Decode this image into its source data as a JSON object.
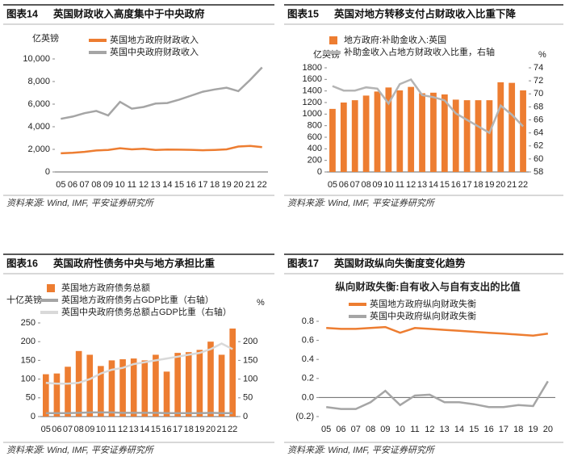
{
  "chart_data": [
    {
      "type": "line",
      "figure_label": "图表14",
      "title": "英国财政收入高度集中于中央政府",
      "y_unit": "亿英镑",
      "categories": [
        "05",
        "06",
        "07",
        "08",
        "09",
        "10",
        "11",
        "12",
        "13",
        "14",
        "15",
        "16",
        "17",
        "18",
        "19",
        "20",
        "21",
        "22"
      ],
      "series": [
        {
          "name": "英国地方政府财政收入",
          "type": "line",
          "color": "#ed7d31",
          "values": [
            1650,
            1700,
            1780,
            1900,
            1950,
            2100,
            2000,
            2050,
            1950,
            1980,
            1970,
            1960,
            1920,
            1950,
            2000,
            2250,
            2300,
            2200
          ]
        },
        {
          "name": "英国中央政府财政收入",
          "type": "line",
          "color": "#a5a5a5",
          "values": [
            4700,
            4900,
            5200,
            5400,
            5000,
            6200,
            5600,
            5750,
            6050,
            6100,
            6400,
            6750,
            7100,
            7300,
            7450,
            7150,
            8150,
            9250
          ]
        }
      ],
      "ylim": [
        0,
        10000
      ],
      "yticks": [
        0,
        {
          "value": 2000,
          "label": "2,000"
        },
        {
          "value": 4000,
          "label": "4,000"
        },
        {
          "value": 6000,
          "label": "6,000"
        },
        {
          "value": 8000,
          "label": "8,000"
        },
        {
          "value": 10000,
          "label": "10,000"
        }
      ],
      "legend": "upper left",
      "source": "资料来源: Wind, IMF, 平安证券研究所"
    },
    {
      "type": "bar_line",
      "figure_label": "图表15",
      "title": "英国对地方转移支付占财政收入比重下降",
      "y_unit": "亿英镑",
      "y2_unit": "%",
      "categories": [
        "05",
        "06",
        "07",
        "08",
        "09",
        "10",
        "11",
        "12",
        "13",
        "14",
        "15",
        "16",
        "17",
        "18",
        "19",
        "20",
        "21",
        "22"
      ],
      "series": [
        {
          "name": "地方政府:补助金收入:英国",
          "type": "bar",
          "color": "#ed7d31",
          "values": [
            1090,
            1200,
            1240,
            1320,
            1390,
            1460,
            1410,
            1470,
            1360,
            1370,
            1340,
            1250,
            1240,
            1240,
            1240,
            1550,
            1540,
            1410
          ]
        },
        {
          "name": "补助金收入占地方财政收入比重，右轴",
          "type": "line",
          "axis": "y2",
          "color": "#b4b4b4",
          "values": [
            71.2,
            70.5,
            70.5,
            71,
            70.8,
            68.5,
            71.5,
            72.2,
            69.8,
            69.5,
            69,
            67,
            66,
            65,
            64,
            68.2,
            66.8,
            65
          ]
        }
      ],
      "ylim": [
        0,
        1800
      ],
      "yticks": [
        0,
        200,
        400,
        600,
        800,
        1000,
        1200,
        1400,
        1600,
        1800
      ],
      "y2lim": [
        58,
        74
      ],
      "y2ticks": [
        58,
        60,
        62,
        64,
        66,
        68,
        70,
        72,
        74
      ],
      "legend": "top",
      "source": "资料来源: Wind, IMF, 平安证券研究所"
    },
    {
      "type": "bar_line",
      "figure_label": "图表16",
      "title": "英国政府性债务中央与地方承担比重",
      "y_unit": "十亿英镑",
      "y2_unit": "%",
      "categories": [
        "05",
        "06",
        "07",
        "08",
        "09",
        "10",
        "11",
        "12",
        "13",
        "14",
        "15",
        "16",
        "17",
        "18",
        "19",
        "20",
        "21",
        "22"
      ],
      "series": [
        {
          "name": "英国地方政府债务总额",
          "type": "bar",
          "color": "#ed7d31",
          "values": [
            113,
            115,
            133,
            175,
            165,
            135,
            150,
            153,
            155,
            150,
            165,
            120,
            170,
            172,
            178,
            200,
            165,
            235
          ]
        },
        {
          "name": "英国地方政府债务占GDP比重（右轴）",
          "type": "line",
          "axis": "y2",
          "color": "#a5a5a5",
          "values": [
            9,
            9,
            9,
            10,
            11,
            11,
            11,
            10,
            10,
            10,
            10,
            9,
            9,
            9,
            9,
            10,
            9,
            9
          ]
        },
        {
          "name": "英国中央政府债务总额占GDP比重（右轴）",
          "type": "line",
          "axis": "y2",
          "color": "#d9d9d9",
          "values": [
            90,
            88,
            88,
            90,
            100,
            115,
            125,
            130,
            140,
            145,
            150,
            155,
            160,
            165,
            170,
            180,
            195,
            180
          ]
        }
      ],
      "ylim": [
        0,
        250
      ],
      "yticks": [
        0,
        50,
        100,
        150,
        200,
        250
      ],
      "y2lim": [
        0,
        250
      ],
      "y2ticks": [
        0,
        50,
        100,
        150,
        200
      ],
      "legend": "upper left",
      "source": "资料来源: Wind, IMF, 平安证券研究所"
    },
    {
      "type": "line",
      "figure_label": "图表17",
      "title": "英国财政纵向失衡度变化趋势",
      "subtitle": "纵向财政失衡:自有收入与自有支出的比值",
      "categories": [
        "05",
        "06",
        "07",
        "08",
        "09",
        "10",
        "11",
        "12",
        "13",
        "14",
        "15",
        "16",
        "17",
        "18",
        "19",
        "20"
      ],
      "series": [
        {
          "name": "英国地方政府纵向财政失衡",
          "type": "line",
          "color": "#ed7d31",
          "values": [
            0.73,
            0.72,
            0.72,
            0.73,
            0.74,
            0.68,
            0.73,
            0.72,
            0.71,
            0.7,
            0.69,
            0.68,
            0.67,
            0.66,
            0.65,
            0.67
          ]
        },
        {
          "name": "英国中央政府纵向财政失衡",
          "type": "line",
          "color": "#a5a5a5",
          "values": [
            -0.1,
            -0.12,
            -0.12,
            -0.05,
            0.07,
            -0.08,
            0.02,
            0.03,
            -0.05,
            -0.05,
            -0.07,
            -0.1,
            -0.1,
            -0.08,
            -0.09,
            0.17
          ]
        }
      ],
      "ylim": [
        -0.2,
        0.8
      ],
      "yticks": [
        {
          "value": -0.2,
          "label": "(0.2)"
        },
        {
          "value": 0,
          "label": "0.0"
        },
        0.2,
        0.4,
        0.6,
        0.8
      ],
      "legend": "top",
      "source": "资料来源: Wind, IMF, 平安证券研究所"
    }
  ]
}
